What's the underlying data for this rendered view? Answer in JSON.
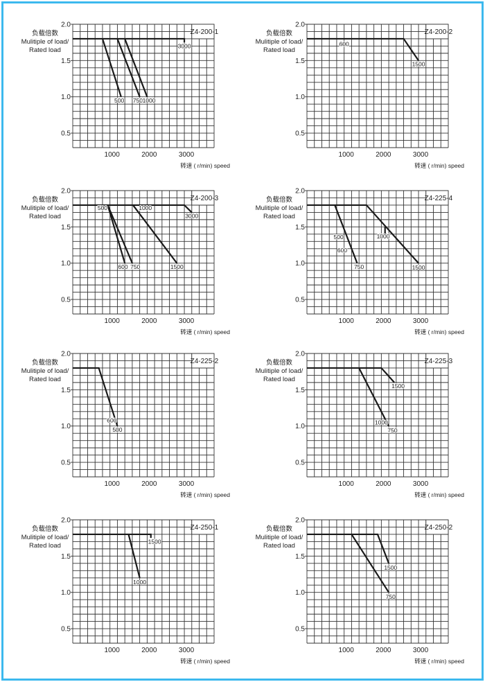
{
  "axes": {
    "ylabel_lines": [
      "负载倍数",
      "Mulitiple of load/",
      "Rated load"
    ],
    "xlabel": "转速 ( r/min) speed",
    "xlim": [
      0,
      3800
    ],
    "ylim": [
      0.3,
      2.0
    ],
    "x_grid_step": 200,
    "y_grid_step": 0.1,
    "x_ticks": [
      1000,
      2000,
      3000
    ],
    "x_tick_labels": [
      "1000",
      "2000",
      "3000"
    ],
    "y_ticks": [
      0.5,
      1.0,
      1.5,
      2.0
    ],
    "y_tick_labels": [
      "0.5",
      "1.0",
      "1.5",
      "2.0"
    ],
    "grid": true,
    "line_color": "#1a1a1a",
    "grid_color": "#333333",
    "frame_color": "#3cb9ee"
  },
  "chart_data": [
    {
      "type": "line",
      "title": "Z4-200-1",
      "series": [
        {
          "name": "flat",
          "points": [
            [
              0,
              1.8
            ],
            [
              3000,
              1.8
            ],
            [
              3000,
              1.75
            ]
          ]
        },
        {
          "name": "500",
          "points": [
            [
              800,
              1.8
            ],
            [
              1300,
              1.0
            ]
          ]
        },
        {
          "name": "750",
          "points": [
            [
              1200,
              1.8
            ],
            [
              1800,
              1.0
            ]
          ]
        },
        {
          "name": "1000",
          "points": [
            [
              1400,
              1.8
            ],
            [
              2000,
              1.0
            ]
          ]
        }
      ],
      "annotations": [
        {
          "text": "3000",
          "x": 3000,
          "y": 1.7
        },
        {
          "text": "500",
          "x": 1250,
          "y": 0.95
        },
        {
          "text": "750",
          "x": 1750,
          "y": 0.95
        },
        {
          "text": "1000",
          "x": 2050,
          "y": 0.95
        }
      ]
    },
    {
      "type": "line",
      "title": "Z4-200-2",
      "series": [
        {
          "name": "600-1500",
          "points": [
            [
              0,
              1.8
            ],
            [
              2600,
              1.8
            ],
            [
              3000,
              1.5
            ]
          ]
        }
      ],
      "annotations": [
        {
          "text": "600",
          "x": 1000,
          "y": 1.73
        },
        {
          "text": "1500",
          "x": 3000,
          "y": 1.45
        }
      ]
    },
    {
      "type": "line",
      "title": "Z4-200-3",
      "series": [
        {
          "name": "flat",
          "points": [
            [
              0,
              1.8
            ],
            [
              3000,
              1.8
            ],
            [
              3200,
              1.7
            ]
          ]
        },
        {
          "name": "600",
          "points": [
            [
              940,
              1.8
            ],
            [
              1400,
              1.0
            ]
          ]
        },
        {
          "name": "750",
          "points": [
            [
              940,
              1.8
            ],
            [
              1600,
              1.0
            ]
          ]
        },
        {
          "name": "1500",
          "points": [
            [
              1620,
              1.8
            ],
            [
              2800,
              1.0
            ]
          ]
        }
      ],
      "annotations": [
        {
          "text": "500",
          "x": 800,
          "y": 1.76
        },
        {
          "text": "1000",
          "x": 1950,
          "y": 1.76
        },
        {
          "text": "3000",
          "x": 3200,
          "y": 1.65
        },
        {
          "text": "600",
          "x": 1350,
          "y": 0.95
        },
        {
          "text": "750",
          "x": 1680,
          "y": 0.95
        },
        {
          "text": "1500",
          "x": 2800,
          "y": 0.95
        }
      ]
    },
    {
      "type": "line",
      "title": "Z4-225-4",
      "series": [
        {
          "name": "flat",
          "points": [
            [
              0,
              1.8
            ],
            [
              1600,
              1.8
            ],
            [
              3000,
              1.0
            ]
          ]
        },
        {
          "name": "750",
          "points": [
            [
              750,
              1.8
            ],
            [
              1350,
              1.0
            ]
          ]
        },
        {
          "name": "1000-tick",
          "points": [
            [
              2100,
              1.5
            ],
            [
              2100,
              1.4
            ]
          ]
        }
      ],
      "annotations": [
        {
          "text": "500",
          "x": 850,
          "y": 1.36
        },
        {
          "text": "600",
          "x": 950,
          "y": 1.18
        },
        {
          "text": "750",
          "x": 1400,
          "y": 0.95
        },
        {
          "text": "1000",
          "x": 2050,
          "y": 1.37
        },
        {
          "text": "1500",
          "x": 3000,
          "y": 0.94
        }
      ]
    },
    {
      "type": "line",
      "title": "Z4-225-2",
      "series": [
        {
          "name": "500-600",
          "points": [
            [
              0,
              1.8
            ],
            [
              700,
              1.8
            ],
            [
              1200,
              1.0
            ]
          ]
        }
      ],
      "annotations": [
        {
          "text": "600",
          "x": 1050,
          "y": 1.08
        },
        {
          "text": "500",
          "x": 1200,
          "y": 0.95
        }
      ]
    },
    {
      "type": "line",
      "title": "Z4-225-3",
      "series": [
        {
          "name": "1500",
          "points": [
            [
              0,
              1.8
            ],
            [
              2000,
              1.8
            ],
            [
              2350,
              1.6
            ]
          ]
        },
        {
          "name": "750-1000",
          "points": [
            [
              1400,
              1.8
            ],
            [
              2200,
              1.0
            ]
          ]
        }
      ],
      "annotations": [
        {
          "text": "1500",
          "x": 2450,
          "y": 1.55
        },
        {
          "text": "1000",
          "x": 2000,
          "y": 1.05
        },
        {
          "text": "750",
          "x": 2300,
          "y": 0.94
        }
      ]
    },
    {
      "type": "line",
      "title": "Z4-250-1",
      "series": [
        {
          "name": "1500",
          "points": [
            [
              0,
              1.8
            ],
            [
              2100,
              1.8
            ],
            [
              2100,
              1.75
            ]
          ]
        },
        {
          "name": "1000",
          "points": [
            [
              1500,
              1.8
            ],
            [
              1800,
              1.2
            ]
          ]
        }
      ],
      "annotations": [
        {
          "text": "1500",
          "x": 2200,
          "y": 1.7
        },
        {
          "text": "1000",
          "x": 1800,
          "y": 1.14
        }
      ]
    },
    {
      "type": "line",
      "title": "Z4-250-2",
      "series": [
        {
          "name": "1500",
          "points": [
            [
              0,
              1.8
            ],
            [
              1900,
              1.8
            ],
            [
              2200,
              1.4
            ]
          ]
        },
        {
          "name": "750",
          "points": [
            [
              1200,
              1.8
            ],
            [
              2200,
              1.0
            ]
          ]
        }
      ],
      "annotations": [
        {
          "text": "1500",
          "x": 2250,
          "y": 1.34
        },
        {
          "text": "750",
          "x": 2250,
          "y": 0.94
        }
      ]
    }
  ]
}
